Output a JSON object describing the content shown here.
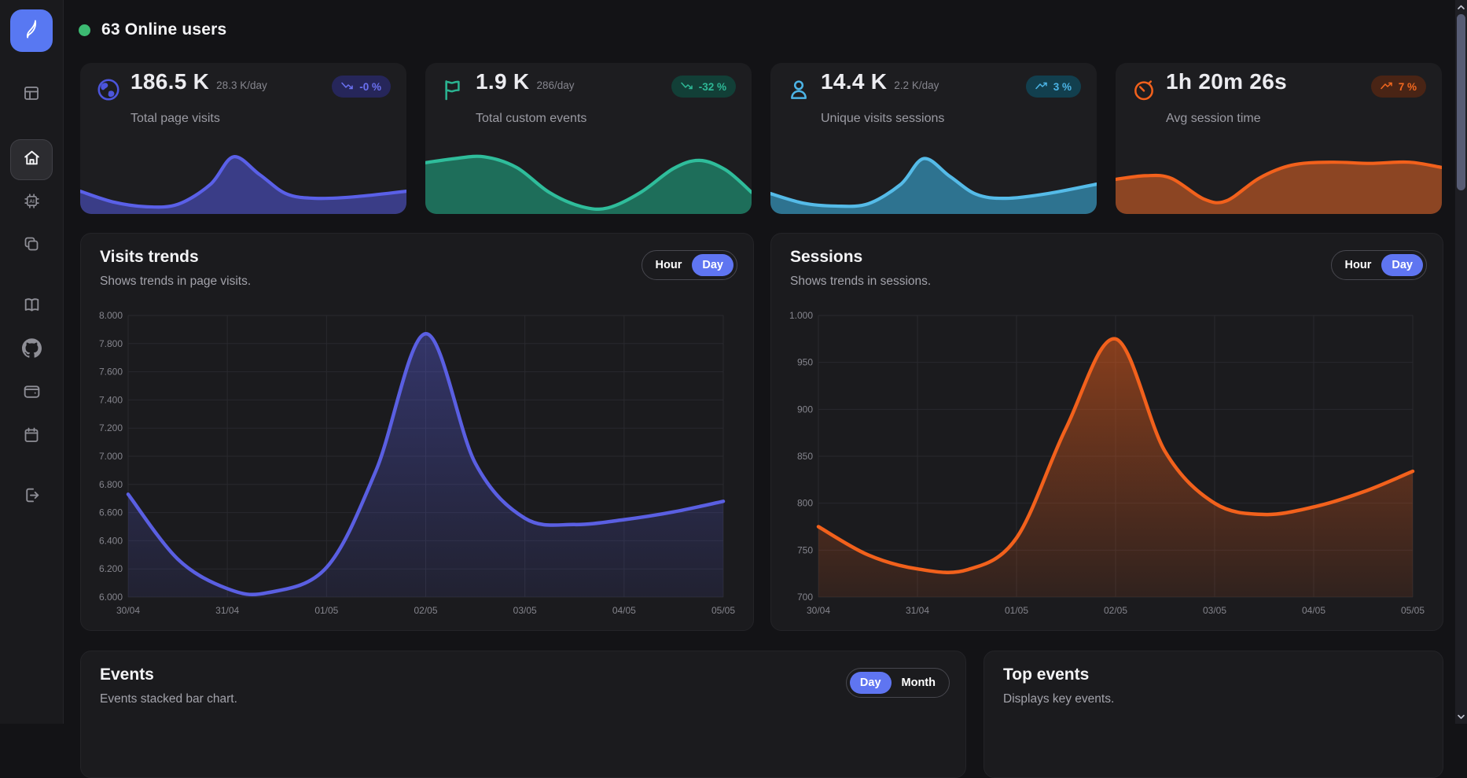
{
  "header": {
    "online": "63 Online users",
    "dot_color": "#3cba72"
  },
  "sidebar": {
    "items": [
      "dashboard",
      "home",
      "ai-assistant",
      "projects",
      "docs",
      "github",
      "wallet",
      "calendar",
      "logout"
    ],
    "active_item": "home"
  },
  "stat_cards": [
    {
      "icon": "globe-icon",
      "value": "186.5 K",
      "rate": "28.3 K/day",
      "label": "Total page visits",
      "badge": {
        "text": "-0 %",
        "trend": "down"
      },
      "colors": {
        "icon": "#4c55dc",
        "line": "#5a60e8",
        "fill": "#3a3d87",
        "badge_bg": "#26265a",
        "badge_text": "#6b71f2"
      },
      "spark_points": [
        [
          0,
          0.3
        ],
        [
          0.1,
          0.12
        ],
        [
          0.2,
          0.04
        ],
        [
          0.3,
          0.08
        ],
        [
          0.4,
          0.42
        ],
        [
          0.47,
          0.88
        ],
        [
          0.55,
          0.58
        ],
        [
          0.63,
          0.26
        ],
        [
          0.72,
          0.18
        ],
        [
          0.85,
          0.21
        ],
        [
          1,
          0.3
        ]
      ]
    },
    {
      "icon": "flag-icon",
      "value": "1.9 K",
      "rate": "286/day",
      "label": "Total custom events",
      "badge": {
        "text": "-32 %",
        "trend": "down"
      },
      "colors": {
        "icon": "#2bb391",
        "line": "#2fbd9b",
        "fill": "#1e6e5a",
        "badge_bg": "#123f37",
        "badge_text": "#2eb896"
      },
      "spark_points": [
        [
          0,
          0.78
        ],
        [
          0.09,
          0.85
        ],
        [
          0.18,
          0.88
        ],
        [
          0.28,
          0.7
        ],
        [
          0.38,
          0.28
        ],
        [
          0.48,
          0.04
        ],
        [
          0.56,
          0.02
        ],
        [
          0.66,
          0.28
        ],
        [
          0.76,
          0.68
        ],
        [
          0.84,
          0.82
        ],
        [
          0.92,
          0.66
        ],
        [
          1,
          0.28
        ]
      ]
    },
    {
      "icon": "user-icon",
      "value": "14.4 K",
      "rate": "2.2 K/day",
      "label": "Unique visits sessions",
      "badge": {
        "text": "3 %",
        "trend": "up"
      },
      "colors": {
        "icon": "#4cb4e6",
        "line": "#55bbe8",
        "fill": "#2e7390",
        "badge_bg": "#123f4e",
        "badge_text": "#4cb4e6"
      },
      "spark_points": [
        [
          0,
          0.26
        ],
        [
          0.1,
          0.1
        ],
        [
          0.2,
          0.05
        ],
        [
          0.3,
          0.09
        ],
        [
          0.4,
          0.42
        ],
        [
          0.47,
          0.85
        ],
        [
          0.55,
          0.55
        ],
        [
          0.63,
          0.25
        ],
        [
          0.72,
          0.18
        ],
        [
          0.85,
          0.26
        ],
        [
          1,
          0.42
        ]
      ]
    },
    {
      "icon": "timer-icon",
      "value": "1h 20m 26s",
      "rate": "",
      "label": "Avg session time",
      "badge": {
        "text": "7 %",
        "trend": "up"
      },
      "colors": {
        "icon": "#f2611c",
        "line": "#f2611c",
        "fill": "#8c4523",
        "badge_bg": "#492415",
        "badge_text": "#f2681f"
      },
      "spark_points": [
        [
          0,
          0.5
        ],
        [
          0.09,
          0.56
        ],
        [
          0.17,
          0.52
        ],
        [
          0.27,
          0.17
        ],
        [
          0.34,
          0.14
        ],
        [
          0.44,
          0.52
        ],
        [
          0.54,
          0.74
        ],
        [
          0.66,
          0.79
        ],
        [
          0.78,
          0.77
        ],
        [
          0.9,
          0.79
        ],
        [
          1,
          0.7
        ]
      ]
    }
  ],
  "panels": {
    "visits": {
      "title": "Visits trends",
      "subtitle": "Shows trends in page visits.",
      "toggle": {
        "options": [
          "Hour",
          "Day"
        ],
        "active": "Day"
      }
    },
    "sessions": {
      "title": "Sessions",
      "subtitle": "Shows trends in sessions.",
      "toggle": {
        "options": [
          "Hour",
          "Day"
        ],
        "active": "Day"
      }
    },
    "events": {
      "title": "Events",
      "subtitle": "Events stacked bar chart.",
      "toggle": {
        "options": [
          "Day",
          "Month"
        ],
        "active": "Day"
      }
    },
    "top_events": {
      "title": "Top events",
      "subtitle": "Displays key events."
    }
  },
  "chart_data": [
    {
      "id": "visits",
      "type": "area",
      "title": "Visits trends",
      "x_labels": [
        "30/04",
        "31/04",
        "01/05",
        "02/05",
        "03/05",
        "04/05",
        "05/05"
      ],
      "x_range": [
        0,
        6
      ],
      "ylim": [
        6000,
        8000
      ],
      "grid": true,
      "legend": "none",
      "y_tick_labels": [
        "8.000",
        "7.800",
        "7.600",
        "7.400",
        "7.200",
        "7.000",
        "6.800",
        "6.600",
        "6.400",
        "6.200",
        "6.000"
      ],
      "series": [
        {
          "name": "Page visits",
          "color": "#5a5fe2",
          "fill_opacity_top": 0.38,
          "fill_opacity_bottom": 0.1,
          "points": [
            [
              0,
              6730
            ],
            [
              0.5,
              6270
            ],
            [
              1,
              6060
            ],
            [
              1.4,
              6030
            ],
            [
              2,
              6210
            ],
            [
              2.5,
              6900
            ],
            [
              3,
              7870
            ],
            [
              3.5,
              6950
            ],
            [
              4,
              6560
            ],
            [
              4.5,
              6515
            ],
            [
              5,
              6550
            ],
            [
              5.5,
              6605
            ],
            [
              6,
              6680
            ]
          ]
        }
      ]
    },
    {
      "id": "sessions",
      "type": "area",
      "title": "Sessions",
      "x_labels": [
        "30/04",
        "31/04",
        "01/05",
        "02/05",
        "03/05",
        "04/05",
        "05/05"
      ],
      "x_range": [
        0,
        6
      ],
      "ylim": [
        700,
        1000
      ],
      "grid": true,
      "legend": "none",
      "y_tick_labels": [
        "1.000",
        "950",
        "900",
        "850",
        "800",
        "750",
        "700"
      ],
      "series": [
        {
          "name": "Sessions",
          "color": "#f2611c",
          "fill_opacity_top": 0.5,
          "fill_opacity_bottom": 0.1,
          "points": [
            [
              0,
              775
            ],
            [
              0.5,
              745
            ],
            [
              1,
              730
            ],
            [
              1.5,
              729
            ],
            [
              2,
              763
            ],
            [
              2.5,
              880
            ],
            [
              3,
              975
            ],
            [
              3.5,
              855
            ],
            [
              4,
              800
            ],
            [
              4.5,
              788
            ],
            [
              5,
              796
            ],
            [
              5.5,
              812
            ],
            [
              6,
              834
            ]
          ]
        }
      ]
    }
  ]
}
